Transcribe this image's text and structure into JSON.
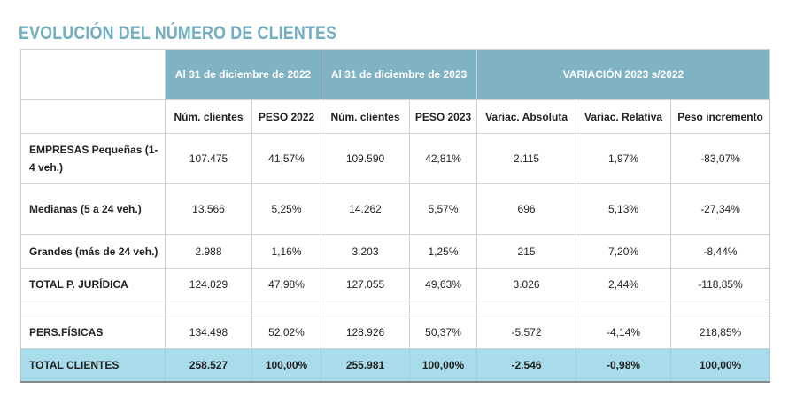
{
  "title": "EVOLUCIÓN DEL NÚMERO DE CLIENTES",
  "group_headers": [
    "Al 31 de diciembre de 2022",
    "Al 31 de diciembre de 2023",
    "VARIACIÓN 2023 s/2022"
  ],
  "columns": [
    "Núm. clientes",
    "PESO 2022",
    "Núm. clientes",
    "PESO 2023",
    "Variac. Absoluta",
    "Variac. Relativa",
    "Peso incremento"
  ],
  "rows": [
    {
      "label": "EMPRESAS Pequeñas (1-4 veh.)",
      "values": [
        "107.475",
        "41,57%",
        "109.590",
        "42,81%",
        "2.115",
        "1,97%",
        "-83,07%"
      ]
    },
    {
      "label": "Medianas (5 a 24 veh.)",
      "values": [
        "13.566",
        "5,25%",
        "14.262",
        "5,57%",
        "696",
        "5,13%",
        "-27,34%"
      ]
    },
    {
      "label": "Grandes (más de 24 veh.)",
      "values": [
        "2.988",
        "1,16%",
        "3.203",
        "1,25%",
        "215",
        "7,20%",
        "-8,44%"
      ]
    },
    {
      "label": "TOTAL P. JURÍDICA",
      "values": [
        "124.029",
        "47,98%",
        "127.055",
        "49,63%",
        "3.026",
        "2,44%",
        "-118,85%"
      ]
    },
    {
      "label": "PERS.FÍSICAS",
      "values": [
        "134.498",
        "52,02%",
        "128.926",
        "50,37%",
        "-5.572",
        "-4,14%",
        "218,85%"
      ]
    },
    {
      "label": "TOTAL CLIENTES",
      "values": [
        "258.527",
        "100,00%",
        "255.981",
        "100,00%",
        "-2.546",
        "-0,98%",
        "100,00%"
      ]
    }
  ],
  "colors": {
    "title": "#72adc0",
    "header": "#7fb3c4",
    "total_row": "#a9dcea"
  }
}
